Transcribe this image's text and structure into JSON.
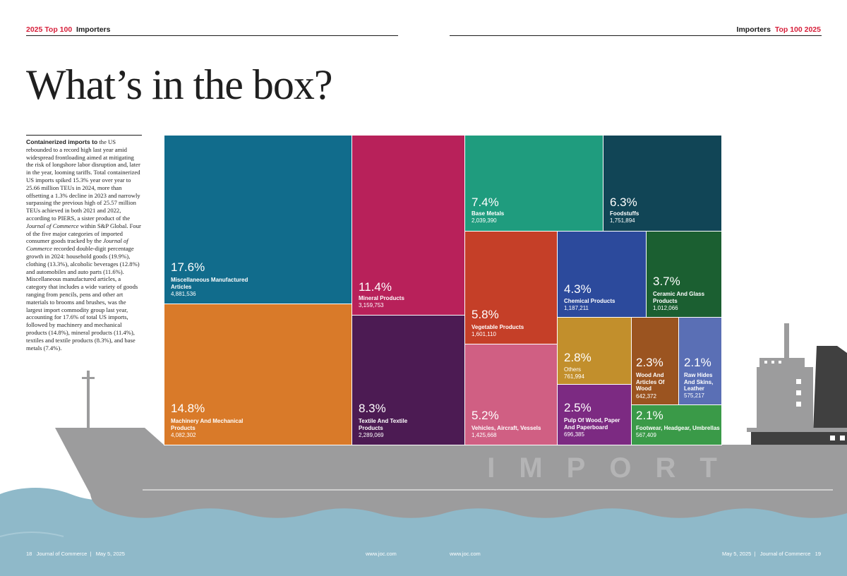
{
  "header": {
    "left_year_label": "2025 Top 100",
    "left_section": "Importers",
    "right_section": "Importers",
    "right_year_label": "Top 100 2025"
  },
  "title": "What’s in the box?",
  "intro": {
    "lead": "Containerized imports to",
    "p1": " the US rebounded to a record high last year amid widespread frontloading aimed at mitigating the risk of longshore labor disruption and, later in the year, looming tariffs. Total containerized US imports spiked 15.3% year over year to 25.66 million TEUs in 2024, more than offsetting a 1.3% decline in 2023 and narrowly surpassing the previous high of 25.57 million TEUs achieved in both 2021 and 2022, according to PIERS, a sister product of the ",
    "pub1": "Journal of Commerce",
    "p2": " within S&P Global. Four of the five major categories of imported consumer goods tracked by the ",
    "pub2": "Journal of Commerce",
    "p3": " recorded double-digit percentage growth in 2024: household goods (19.9%), clothing (13.3%), alcoholic beverages (12.8%) and automobiles and auto parts (11.6%). Miscellaneous manufactured articles, a category that includes a wide variety of goods ranging from pencils, pens and other art materials to brooms and brushes, was the largest import commodity group last year, accounting for 17.6% of total US imports, followed by machinery and mechanical products (14.8%), mineral products (11.4%), textiles and textile products (8.3%), and base metals (7.4%)."
  },
  "ship": {
    "hull_text": "IMPORT"
  },
  "colors": {
    "accent_red": "#d71f3a",
    "hull": "#9c9c9d",
    "sea": "#8fb9c9",
    "misc": "#116c8c",
    "mineral": "#b8215a",
    "base_metals": "#1f9c7e",
    "foodstuffs": "#114556",
    "vegetable": "#c53f28",
    "chemical": "#2c4a9c",
    "ceramic": "#1b5f31",
    "machinery": "#d97a29",
    "textile": "#4c1b53",
    "vehicles": "#d05f83",
    "others": "#c28f2c",
    "wood": "#9b5420",
    "raw_hides": "#5a6fb5",
    "pulp": "#7c2a82",
    "footwear": "#3a9a48"
  },
  "chart_data": {
    "type": "treemap",
    "items": [
      {
        "key": "misc",
        "pct": "17.6%",
        "label": "Miscellaneous Manufactured Articles",
        "value": "4,881,536"
      },
      {
        "key": "mineral",
        "pct": "11.4%",
        "label": "Mineral Products",
        "value": "3,159,753"
      },
      {
        "key": "base_metals",
        "pct": "7.4%",
        "label": "Base Metals",
        "value": "2,039,390"
      },
      {
        "key": "foodstuffs",
        "pct": "6.3%",
        "label": "Foodstuffs",
        "value": "1,751,894"
      },
      {
        "key": "vegetable",
        "pct": "5.8%",
        "label": "Vegetable Products",
        "value": "1,601,110"
      },
      {
        "key": "chemical",
        "pct": "4.3%",
        "label": "Chemical Products",
        "value": "1,187,211"
      },
      {
        "key": "ceramic",
        "pct": "3.7%",
        "label": "Ceramic And Glass Products",
        "value": "1,012,066"
      },
      {
        "key": "machinery",
        "pct": "14.8%",
        "label": "Machinery And Mechanical Products",
        "value": "4,082,302"
      },
      {
        "key": "textile",
        "pct": "8.3%",
        "label": "Textile And Textile Products",
        "value": "2,289,069"
      },
      {
        "key": "vehicles",
        "pct": "5.2%",
        "label": "Vehicles, Aircraft, Vessels",
        "value": "1,425,668"
      },
      {
        "key": "others",
        "pct": "2.8%",
        "label": "Others",
        "value": "761,994"
      },
      {
        "key": "wood",
        "pct": "2.3%",
        "label": "Wood And Articles Of Wood",
        "value": "642,372"
      },
      {
        "key": "raw_hides",
        "pct": "2.1%",
        "label": "Raw Hides And Skins, Leather",
        "value": "575,217"
      },
      {
        "key": "pulp",
        "pct": "2.5%",
        "label": "Pulp Of Wood, Paper And Paperboard",
        "value": "696,385"
      },
      {
        "key": "footwear",
        "pct": "2.1%",
        "label": "Footwear, Headgear, Umbrellas",
        "value": "567,409"
      }
    ]
  },
  "footer": {
    "left_page": "18",
    "left_pub": "Journal of Commerce",
    "left_date": "May 5, 2025",
    "left_url": "www.joc.com",
    "right_url": "www.joc.com",
    "right_date": "May 5, 2025",
    "right_pub": "Journal of Commerce",
    "right_page": "19"
  }
}
